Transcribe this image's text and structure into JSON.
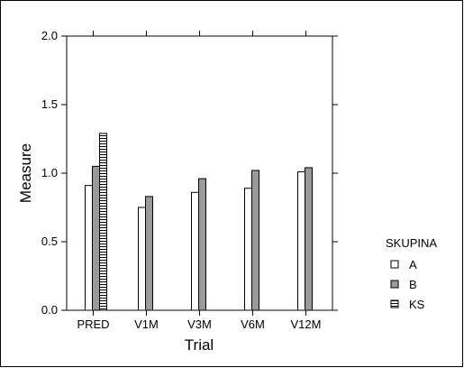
{
  "chart_data": {
    "type": "bar",
    "title": "",
    "xlabel": "Trial",
    "ylabel": "Measure",
    "ylim": [
      0,
      2.0
    ],
    "yticks": [
      "0.0",
      "0.5",
      "1.0",
      "1.5",
      "2.0"
    ],
    "categories": [
      "PRED",
      "V1M",
      "V3M",
      "V6M",
      "V12M"
    ],
    "series": [
      {
        "name": "A",
        "values": [
          0.91,
          0.75,
          0.86,
          0.89,
          1.01
        ],
        "fill": "#ffffff",
        "pattern": "none"
      },
      {
        "name": "B",
        "values": [
          1.05,
          0.83,
          0.96,
          1.02,
          1.04
        ],
        "fill": "#9a9a9a",
        "pattern": "none"
      },
      {
        "name": "KS",
        "values": [
          1.29,
          null,
          null,
          null,
          null
        ],
        "fill": "#ffffff",
        "pattern": "horizontal-lines"
      }
    ],
    "legend": {
      "title": "SKUPINA",
      "position": "right"
    },
    "grid": false
  }
}
